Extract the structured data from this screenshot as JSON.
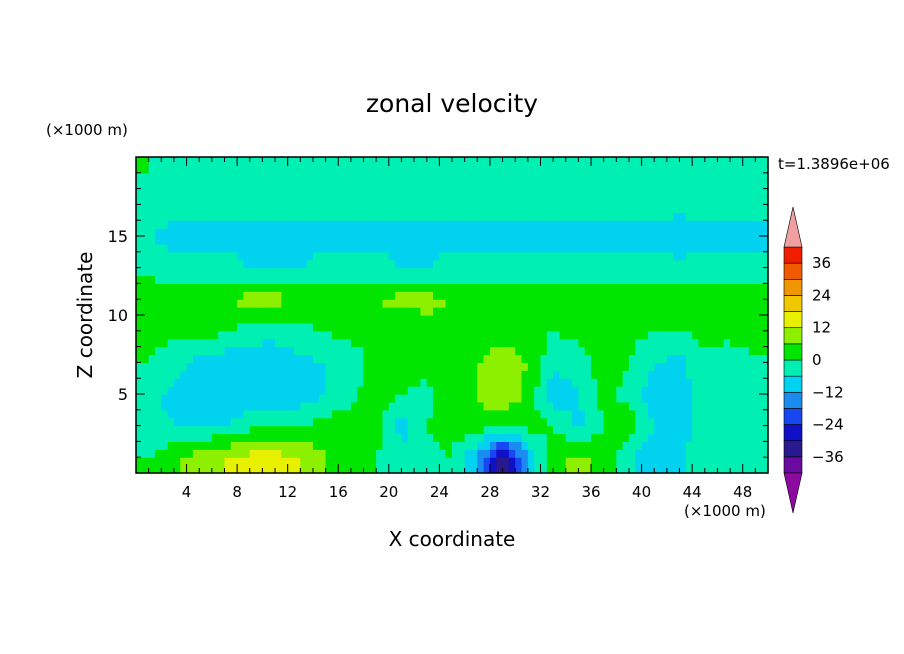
{
  "chart_data": {
    "type": "heatmap",
    "title": "zonal velocity",
    "xlabel": "X coordinate",
    "ylabel": "Z coordinate",
    "x_unit": "(×1000 m)",
    "y_unit": "(×1000 m)",
    "time_label": "t=1.3896e+06",
    "xlim": [
      0,
      50
    ],
    "ylim": [
      0,
      20
    ],
    "x_ticks": [
      4,
      8,
      12,
      16,
      20,
      24,
      28,
      32,
      36,
      40,
      44,
      48
    ],
    "y_ticks": [
      5,
      10,
      15
    ],
    "colorbar": {
      "levels": [
        -42,
        -36,
        -30,
        -24,
        -18,
        -12,
        -6,
        0,
        6,
        12,
        18,
        24,
        30,
        36,
        42
      ],
      "tick_values": [
        -36,
        -24,
        -12,
        0,
        12,
        24,
        36
      ],
      "tick_labels": [
        "−36",
        "−24",
        "−12",
        "0",
        "12",
        "24",
        "36"
      ],
      "colors": [
        "#6a0aa0",
        "#2a1890",
        "#1010c8",
        "#1846f0",
        "#1a8cf0",
        "#00d2f0",
        "#00f0b4",
        "#00e600",
        "#8cf000",
        "#e6f000",
        "#f0c800",
        "#f09600",
        "#f05a00",
        "#f01e00"
      ],
      "under_color": "#8c0aa0",
      "over_color": "#f0a0a0"
    },
    "field": {
      "description_grid": "values at 2 km x spacing (x=1..49) and 2 km z spacing (z=1..19)",
      "x": [
        1,
        3,
        5,
        7,
        9,
        11,
        13,
        15,
        17,
        19,
        21,
        23,
        25,
        27,
        29,
        31,
        33,
        35,
        37,
        39,
        41,
        43,
        45,
        47,
        49
      ],
      "z": [
        1,
        3,
        5,
        7,
        9,
        11,
        13,
        15,
        17,
        19
      ],
      "u": [
        [
          0,
          4,
          10,
          12,
          14,
          14,
          12,
          6,
          2,
          0,
          -2,
          -2,
          0,
          -12,
          -34,
          -12,
          4,
          8,
          4,
          -4,
          -12,
          -8,
          0,
          -4,
          -2
        ],
        [
          -4,
          -6,
          -8,
          -6,
          -2,
          0,
          0,
          2,
          4,
          2,
          -10,
          0,
          2,
          4,
          0,
          2,
          0,
          -8,
          0,
          4,
          -6,
          -10,
          -2,
          -2,
          -6
        ],
        [
          -4,
          -8,
          -10,
          -12,
          -10,
          -12,
          -10,
          -6,
          -2,
          4,
          0,
          -2,
          4,
          6,
          12,
          4,
          -10,
          -6,
          2,
          -2,
          -10,
          -10,
          0,
          -4,
          -2
        ],
        [
          0,
          -4,
          -8,
          -10,
          -12,
          -10,
          -8,
          -6,
          -4,
          2,
          6,
          2,
          4,
          6,
          10,
          6,
          -4,
          -4,
          4,
          0,
          -6,
          -8,
          -2,
          -4,
          -2
        ],
        [
          2,
          2,
          4,
          0,
          -2,
          -4,
          -2,
          0,
          2,
          4,
          0,
          4,
          2,
          2,
          4,
          2,
          0,
          2,
          4,
          2,
          0,
          0,
          2,
          2,
          4
        ],
        [
          4,
          4,
          6,
          6,
          8,
          8,
          6,
          6,
          6,
          6,
          8,
          8,
          6,
          6,
          6,
          6,
          6,
          6,
          6,
          6,
          6,
          6,
          6,
          6,
          6
        ],
        [
          -2,
          -4,
          -4,
          -4,
          -6,
          -6,
          -6,
          -4,
          -4,
          -4,
          -6,
          -6,
          -4,
          -4,
          -4,
          -4,
          -4,
          -4,
          -4,
          -4,
          -4,
          -4,
          -4,
          -4,
          -4
        ],
        [
          -6,
          -8,
          -8,
          -8,
          -8,
          -8,
          -8,
          -8,
          -8,
          -8,
          -8,
          -8,
          -8,
          -8,
          -8,
          -8,
          -8,
          -8,
          -8,
          -8,
          -8,
          -10,
          -8,
          -8,
          -8
        ],
        [
          -2,
          -4,
          -4,
          -4,
          -4,
          -4,
          -4,
          -4,
          -4,
          -4,
          -4,
          -4,
          -4,
          -4,
          -4,
          -4,
          -4,
          -4,
          -4,
          -4,
          -4,
          -4,
          -4,
          -4,
          -4
        ],
        [
          0,
          -2,
          -2,
          -4,
          -2,
          -2,
          -2,
          -2,
          0,
          -2,
          -2,
          -2,
          -2,
          -4,
          -2,
          -2,
          -2,
          -2,
          -4,
          -2,
          -2,
          -2,
          -2,
          -2,
          -2
        ]
      ]
    }
  }
}
